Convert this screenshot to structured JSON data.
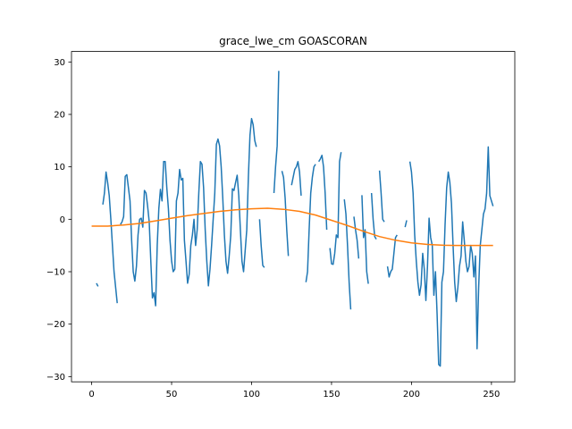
{
  "chart_data": {
    "type": "line",
    "title": "grace_lwe_cm GOASCORAN",
    "xlabel": "",
    "ylabel": "",
    "xlim": [
      -12.6,
      264.6
    ],
    "ylim": [
      -31,
      32
    ],
    "x_ticks": [
      0,
      50,
      100,
      150,
      200,
      250
    ],
    "y_ticks": [
      -30,
      -20,
      -10,
      0,
      10,
      20,
      30
    ],
    "grid": false,
    "legend": "none",
    "series": [
      {
        "color": "#1f77b4",
        "segments": [
          [
            [
              3,
              -12.2
            ],
            [
              4,
              -12.8
            ]
          ],
          [
            [
              7,
              2.8
            ],
            [
              8,
              5
            ],
            [
              9,
              9
            ],
            [
              10,
              7
            ],
            [
              11,
              4.5
            ],
            [
              12,
              0
            ],
            [
              13,
              -5
            ],
            [
              14,
              -10
            ],
            [
              15,
              -13
            ],
            [
              16,
              -16
            ]
          ],
          [
            [
              18,
              -1
            ],
            [
              19,
              -0.5
            ],
            [
              20,
              0.5
            ],
            [
              21,
              8.2
            ],
            [
              22,
              8.5
            ],
            [
              23,
              6
            ],
            [
              24,
              3.5
            ],
            [
              25,
              -4
            ],
            [
              26,
              -10
            ],
            [
              27,
              -11.8
            ],
            [
              28,
              -9
            ],
            [
              29,
              -3
            ],
            [
              30,
              0
            ],
            [
              31,
              0.2
            ],
            [
              32,
              -1.5
            ],
            [
              33,
              5.5
            ],
            [
              34,
              5
            ],
            [
              35,
              2.5
            ],
            [
              36,
              -0.5
            ],
            [
              37,
              -8
            ],
            [
              38,
              -15
            ],
            [
              39,
              -14
            ],
            [
              40,
              -16.5
            ],
            [
              41,
              -5
            ],
            [
              42,
              2
            ],
            [
              43,
              5.7
            ],
            [
              44,
              3.5
            ],
            [
              45,
              11
            ],
            [
              46,
              11
            ],
            [
              47,
              6
            ],
            [
              48,
              2
            ],
            [
              49,
              -4
            ],
            [
              50,
              -8
            ],
            [
              51,
              -10
            ],
            [
              52,
              -9.5
            ],
            [
              53,
              3.5
            ],
            [
              54,
              5
            ],
            [
              55,
              9.5
            ],
            [
              56,
              7.5
            ],
            [
              57,
              7.8
            ],
            [
              58,
              -4
            ],
            [
              59,
              -8
            ],
            [
              60,
              -12.2
            ],
            [
              61,
              -10.5
            ],
            [
              62,
              -5
            ],
            [
              63,
              -3
            ],
            [
              64,
              0
            ],
            [
              65,
              -5
            ],
            [
              66,
              -2
            ],
            [
              67,
              5
            ],
            [
              68,
              11
            ],
            [
              69,
              10.5
            ],
            [
              70,
              6
            ],
            [
              71,
              -2
            ],
            [
              72,
              -8
            ],
            [
              73,
              -12.7
            ],
            [
              74,
              -9.5
            ],
            [
              75,
              -5
            ],
            [
              76,
              0
            ],
            [
              77,
              5
            ],
            [
              78,
              14.3
            ],
            [
              79,
              15.3
            ],
            [
              80,
              14
            ],
            [
              81,
              10
            ],
            [
              82,
              4
            ],
            [
              83,
              -3
            ],
            [
              84,
              -8
            ],
            [
              85,
              -10.3
            ],
            [
              86,
              -7
            ],
            [
              87,
              -3
            ],
            [
              88,
              5.8
            ],
            [
              89,
              5.5
            ],
            [
              90,
              7
            ],
            [
              91,
              8.4
            ],
            [
              92,
              4.5
            ],
            [
              93,
              -2
            ],
            [
              94,
              -8
            ],
            [
              95,
              -10
            ],
            [
              96,
              -6
            ],
            [
              97,
              -2
            ],
            [
              98,
              8
            ],
            [
              99,
              16
            ],
            [
              100,
              19.2
            ],
            [
              101,
              18
            ],
            [
              102,
              15
            ],
            [
              103,
              13.8
            ]
          ],
          [
            [
              105,
              0
            ],
            [
              106,
              -5
            ],
            [
              107,
              -8.8
            ],
            [
              108,
              -9.2
            ]
          ],
          [
            [
              114,
              5
            ],
            [
              115,
              10
            ],
            [
              116,
              14
            ],
            [
              117,
              28.3
            ]
          ],
          [
            [
              119,
              9.2
            ],
            [
              120,
              8
            ],
            [
              121,
              4
            ],
            [
              122,
              -2
            ],
            [
              123,
              -7
            ]
          ],
          [
            [
              125,
              6.5
            ],
            [
              126,
              8
            ],
            [
              127,
              9.5
            ],
            [
              128,
              10
            ],
            [
              129,
              11
            ],
            [
              130,
              9
            ],
            [
              131,
              4.5
            ]
          ],
          [
            [
              134,
              -12
            ],
            [
              135,
              -10
            ],
            [
              136,
              -2
            ],
            [
              137,
              5
            ],
            [
              138,
              8
            ],
            [
              139,
              10
            ],
            [
              140,
              10.5
            ]
          ],
          [
            [
              142,
              11
            ],
            [
              143,
              11.5
            ],
            [
              144,
              12.2
            ],
            [
              145,
              10
            ],
            [
              146,
              5
            ],
            [
              147,
              -2
            ]
          ],
          [
            [
              149,
              -5.5
            ],
            [
              150,
              -8.5
            ],
            [
              151,
              -8.6
            ],
            [
              152,
              -6.5
            ],
            [
              153,
              -3
            ],
            [
              154,
              -3.5
            ],
            [
              155,
              11
            ],
            [
              156,
              12.8
            ]
          ],
          [
            [
              158,
              3.8
            ],
            [
              159,
              1
            ],
            [
              160,
              -5
            ],
            [
              161,
              -12
            ],
            [
              162,
              -17.2
            ]
          ],
          [
            [
              164,
              0.5
            ],
            [
              165,
              -2
            ],
            [
              166,
              -4
            ],
            [
              167,
              -7.5
            ]
          ],
          [
            [
              169,
              4.6
            ],
            [
              170,
              -3.5
            ],
            [
              171,
              -2
            ],
            [
              172,
              -10
            ],
            [
              173,
              -12.3
            ]
          ],
          [
            [
              175,
              5
            ],
            [
              176,
              0
            ],
            [
              177,
              -3.3
            ],
            [
              178,
              -3.8
            ]
          ],
          [
            [
              180,
              9.3
            ],
            [
              181,
              5
            ],
            [
              182,
              0
            ],
            [
              183,
              -0.5
            ]
          ],
          [
            [
              185,
              -9
            ],
            [
              186,
              -11
            ],
            [
              187,
              -10
            ],
            [
              188,
              -9.5
            ],
            [
              189,
              -6.5
            ],
            [
              190,
              -3.5
            ],
            [
              191,
              -3
            ]
          ],
          [
            [
              196,
              -1.5
            ],
            [
              197,
              -0.2
            ]
          ],
          [
            [
              199,
              11
            ],
            [
              200,
              9
            ],
            [
              201,
              5
            ],
            [
              202,
              -3
            ],
            [
              203,
              -8
            ],
            [
              204,
              -12
            ],
            [
              205,
              -14.5
            ],
            [
              206,
              -12.5
            ],
            [
              207,
              -6.5
            ],
            [
              208,
              -9.5
            ],
            [
              209,
              -15.5
            ],
            [
              210,
              -9
            ],
            [
              211,
              0.2
            ],
            [
              212,
              -3.5
            ],
            [
              213,
              -5
            ],
            [
              214,
              -14.5
            ],
            [
              215,
              -10
            ],
            [
              216,
              -18
            ],
            [
              217,
              -27.7
            ],
            [
              218,
              -28
            ],
            [
              219,
              -12
            ],
            [
              220,
              -10
            ],
            [
              221,
              -1
            ],
            [
              222,
              6
            ],
            [
              223,
              9
            ],
            [
              224,
              7
            ],
            [
              225,
              3
            ],
            [
              226,
              -5
            ],
            [
              227,
              -12
            ],
            [
              228,
              -15.7
            ],
            [
              229,
              -13
            ],
            [
              230,
              -9
            ],
            [
              231,
              -7
            ],
            [
              232,
              -0.5
            ],
            [
              233,
              -4
            ],
            [
              234,
              -8
            ],
            [
              235,
              -10
            ],
            [
              236,
              -9
            ],
            [
              237,
              -5
            ],
            [
              238,
              -6.5
            ],
            [
              239,
              -11
            ],
            [
              240,
              -7
            ],
            [
              241,
              -24.7
            ],
            [
              242,
              -13
            ],
            [
              243,
              -5
            ],
            [
              244,
              -2
            ],
            [
              245,
              1
            ],
            [
              246,
              2
            ],
            [
              247,
              5
            ],
            [
              248,
              13.8
            ],
            [
              249,
              4.5
            ],
            [
              250,
              3.5
            ],
            [
              251,
              2.5
            ]
          ]
        ]
      },
      {
        "color": "#ff7f0e",
        "points": [
          [
            0,
            -1.3
          ],
          [
            10,
            -1.3
          ],
          [
            20,
            -1.1
          ],
          [
            30,
            -0.8
          ],
          [
            40,
            -0.3
          ],
          [
            50,
            0.2
          ],
          [
            60,
            0.7
          ],
          [
            70,
            1.1
          ],
          [
            80,
            1.5
          ],
          [
            90,
            1.8
          ],
          [
            100,
            2
          ],
          [
            110,
            2.1
          ],
          [
            120,
            1.9
          ],
          [
            130,
            1.5
          ],
          [
            140,
            0.8
          ],
          [
            150,
            -0.2
          ],
          [
            160,
            -1.2
          ],
          [
            170,
            -2.3
          ],
          [
            180,
            -3.3
          ],
          [
            190,
            -4
          ],
          [
            200,
            -4.5
          ],
          [
            210,
            -4.8
          ],
          [
            220,
            -4.95
          ],
          [
            230,
            -5
          ],
          [
            240,
            -5
          ],
          [
            251,
            -5
          ]
        ]
      }
    ]
  }
}
